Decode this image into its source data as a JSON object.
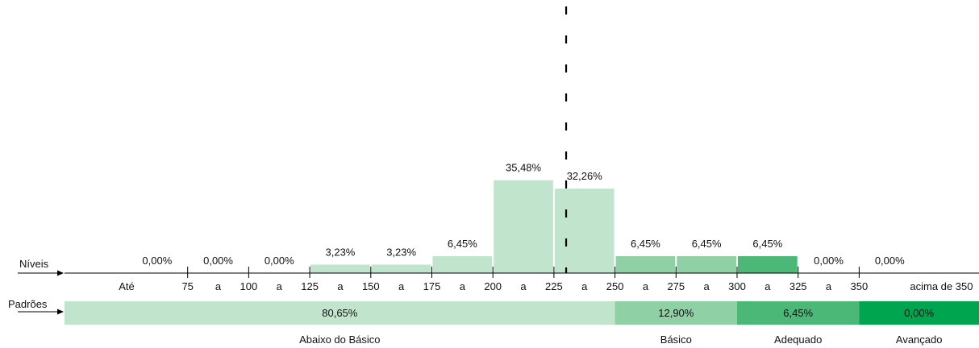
{
  "chart_data": {
    "type": "bar",
    "categories": [
      "Até 75",
      "75 a 100",
      "100 a 125",
      "125 a 150",
      "150 a 175",
      "175 a 200",
      "200 a 225",
      "225 a 250",
      "250 a 275",
      "275 a 300",
      "300 a 325",
      "325 a 350",
      "acima de 350"
    ],
    "values": [
      0,
      0,
      0,
      3.23,
      3.23,
      6.45,
      35.48,
      32.26,
      6.45,
      6.45,
      6.45,
      0,
      0
    ],
    "value_labels": [
      "0,00%",
      "0,00%",
      "0,00%",
      "3,23%",
      "3,23%",
      "6,45%",
      "35,48%",
      "32,26%",
      "6,45%",
      "6,45%",
      "6,45%",
      "0,00%",
      "0,00%"
    ],
    "bar_levels": [
      "abaixo",
      "abaixo",
      "abaixo",
      "abaixo",
      "abaixo",
      "abaixo",
      "abaixo",
      "abaixo",
      "basico",
      "basico",
      "adequado",
      "avancado",
      "avancado"
    ],
    "ylim": [
      0,
      40
    ],
    "scale_marks": [
      {
        "id": "ate",
        "label": "Até",
        "unit": 0
      },
      {
        "id": "t75",
        "label": "75",
        "unit": 1
      },
      {
        "id": "a1",
        "label": "a",
        "unit": 1.5
      },
      {
        "id": "t100",
        "label": "100",
        "unit": 2
      },
      {
        "id": "a2",
        "label": "a",
        "unit": 2.5
      },
      {
        "id": "t125",
        "label": "125",
        "unit": 3
      },
      {
        "id": "a3",
        "label": "a",
        "unit": 3.5
      },
      {
        "id": "t150",
        "label": "150",
        "unit": 4
      },
      {
        "id": "a4",
        "label": "a",
        "unit": 4.5
      },
      {
        "id": "t175",
        "label": "175",
        "unit": 5
      },
      {
        "id": "a5",
        "label": "a",
        "unit": 5.5
      },
      {
        "id": "t200",
        "label": "200",
        "unit": 6
      },
      {
        "id": "a6",
        "label": "a",
        "unit": 6.5
      },
      {
        "id": "t225",
        "label": "225",
        "unit": 7
      },
      {
        "id": "a7",
        "label": "a",
        "unit": 7.5
      },
      {
        "id": "t250",
        "label": "250",
        "unit": 8
      },
      {
        "id": "a8",
        "label": "a",
        "unit": 8.5
      },
      {
        "id": "t275",
        "label": "275",
        "unit": 9
      },
      {
        "id": "a9",
        "label": "a",
        "unit": 9.5
      },
      {
        "id": "t300",
        "label": "300",
        "unit": 10
      },
      {
        "id": "a10",
        "label": "a",
        "unit": 10.5
      },
      {
        "id": "t325",
        "label": "325",
        "unit": 11
      },
      {
        "id": "a11",
        "label": "a",
        "unit": 11.5
      },
      {
        "id": "t350",
        "label": "350",
        "unit": 12
      },
      {
        "id": "acima",
        "label": "acima de 350",
        "unit": 12.7
      }
    ],
    "reference_line_score": 230,
    "row_labels": {
      "niveis": "Níveis",
      "padroes": "Padrões"
    },
    "standards": [
      {
        "key": "abaixo",
        "name": "Abaixo do Básico",
        "value": 80.65,
        "label": "80,65%",
        "color": "#c1e5cc",
        "from": 0,
        "to": 8
      },
      {
        "key": "basico",
        "name": "Básico",
        "value": 12.9,
        "label": "12,90%",
        "color": "#8fd0a4",
        "from": 8,
        "to": 10
      },
      {
        "key": "adequado",
        "name": "Adequado",
        "value": 6.45,
        "label": "6,45%",
        "color": "#4cb878",
        "from": 10,
        "to": 12
      },
      {
        "key": "avancado",
        "name": "Avançado",
        "value": 0,
        "label": "0,00%",
        "color": "#00a550",
        "from": 12,
        "to": 14
      }
    ]
  }
}
